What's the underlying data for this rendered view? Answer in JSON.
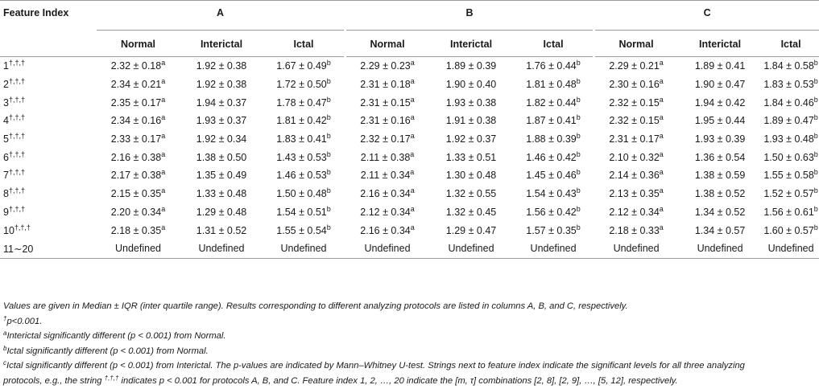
{
  "table": {
    "header_feature_index": "Feature Index",
    "groups": [
      "A",
      "B",
      "C"
    ],
    "subheaders": [
      "Normal",
      "Interictal",
      "Ictal"
    ],
    "rows": [
      {
        "idx": "1",
        "sig": "†,†,†",
        "cells": [
          {
            "v": "2.32 ± 0.18",
            "s": "a"
          },
          {
            "v": "1.92 ± 0.38",
            "s": ""
          },
          {
            "v": "1.67 ± 0.49",
            "s": "b"
          },
          {
            "v": "2.29 ± 0.23",
            "s": "a"
          },
          {
            "v": "1.89 ± 0.39",
            "s": ""
          },
          {
            "v": "1.76 ± 0.44",
            "s": "b"
          },
          {
            "v": "2.29 ± 0.21",
            "s": "a"
          },
          {
            "v": "1.89 ± 0.41",
            "s": ""
          },
          {
            "v": "1.84 ± 0.58",
            "s": "b"
          }
        ]
      },
      {
        "idx": "2",
        "sig": "†,†,†",
        "cells": [
          {
            "v": "2.34 ± 0.21",
            "s": "a"
          },
          {
            "v": "1.92 ± 0.38",
            "s": ""
          },
          {
            "v": "1.72 ± 0.50",
            "s": "b"
          },
          {
            "v": "2.31 ± 0.18",
            "s": "a"
          },
          {
            "v": "1.90 ± 0.40",
            "s": ""
          },
          {
            "v": "1.81 ± 0.48",
            "s": "b"
          },
          {
            "v": "2.30 ± 0.16",
            "s": "a"
          },
          {
            "v": "1.90 ± 0.47",
            "s": ""
          },
          {
            "v": "1.83 ± 0.53",
            "s": "b"
          }
        ]
      },
      {
        "idx": "3",
        "sig": "†,†,†",
        "cells": [
          {
            "v": "2.35 ± 0.17",
            "s": "a"
          },
          {
            "v": "1.94 ± 0.37",
            "s": ""
          },
          {
            "v": "1.78 ± 0.47",
            "s": "b"
          },
          {
            "v": "2.31 ± 0.15",
            "s": "a"
          },
          {
            "v": "1.93 ± 0.38",
            "s": ""
          },
          {
            "v": "1.82 ± 0.44",
            "s": "b"
          },
          {
            "v": "2.32 ± 0.15",
            "s": "a"
          },
          {
            "v": "1.94 ± 0.42",
            "s": ""
          },
          {
            "v": "1.84 ± 0.46",
            "s": "b"
          }
        ]
      },
      {
        "idx": "4",
        "sig": "†,†,†",
        "cells": [
          {
            "v": "2.34 ± 0.16",
            "s": "a"
          },
          {
            "v": "1.93 ± 0.37",
            "s": ""
          },
          {
            "v": "1.81 ± 0.42",
            "s": "b"
          },
          {
            "v": "2.31 ± 0.16",
            "s": "a"
          },
          {
            "v": "1.91 ± 0.38",
            "s": ""
          },
          {
            "v": "1.87 ± 0.41",
            "s": "b"
          },
          {
            "v": "2.32 ± 0.15",
            "s": "a"
          },
          {
            "v": "1.95 ± 0.44",
            "s": ""
          },
          {
            "v": "1.89 ± 0.47",
            "s": "b"
          }
        ]
      },
      {
        "idx": "5",
        "sig": "†,†,†",
        "cells": [
          {
            "v": "2.33 ± 0.17",
            "s": "a"
          },
          {
            "v": "1.92 ± 0.34",
            "s": ""
          },
          {
            "v": "1.83 ± 0.41",
            "s": "b"
          },
          {
            "v": "2.32 ± 0.17",
            "s": "a"
          },
          {
            "v": "1.92 ± 0.37",
            "s": ""
          },
          {
            "v": "1.88 ± 0.39",
            "s": "b"
          },
          {
            "v": "2.31 ± 0.17",
            "s": "a"
          },
          {
            "v": "1.93 ± 0.39",
            "s": ""
          },
          {
            "v": "1.93 ± 0.48",
            "s": "b"
          }
        ]
      },
      {
        "idx": "6",
        "sig": "†,†,†",
        "cells": [
          {
            "v": "2.16 ± 0.38",
            "s": "a"
          },
          {
            "v": "1.38 ± 0.50",
            "s": ""
          },
          {
            "v": "1.43 ± 0.53",
            "s": "b"
          },
          {
            "v": "2.11 ± 0.38",
            "s": "a"
          },
          {
            "v": "1.33 ± 0.51",
            "s": ""
          },
          {
            "v": "1.46 ± 0.42",
            "s": "b"
          },
          {
            "v": "2.10 ± 0.32",
            "s": "a"
          },
          {
            "v": "1.36 ± 0.54",
            "s": ""
          },
          {
            "v": "1.50 ± 0.63",
            "s": "b"
          }
        ]
      },
      {
        "idx": "7",
        "sig": "†,†,†",
        "cells": [
          {
            "v": "2.17 ± 0.38",
            "s": "a"
          },
          {
            "v": "1.35 ± 0.49",
            "s": ""
          },
          {
            "v": "1.46 ± 0.53",
            "s": "b"
          },
          {
            "v": "2.11 ± 0.34",
            "s": "a"
          },
          {
            "v": "1.30 ± 0.48",
            "s": ""
          },
          {
            "v": "1.45 ± 0.46",
            "s": "b"
          },
          {
            "v": "2.14 ± 0.36",
            "s": "a"
          },
          {
            "v": "1.38 ± 0.59",
            "s": ""
          },
          {
            "v": "1.55 ± 0.58",
            "s": "b"
          }
        ]
      },
      {
        "idx": "8",
        "sig": "†,†,†",
        "cells": [
          {
            "v": "2.15 ± 0.35",
            "s": "a"
          },
          {
            "v": "1.33 ± 0.48",
            "s": ""
          },
          {
            "v": "1.50 ± 0.48",
            "s": "b"
          },
          {
            "v": "2.16 ± 0.34",
            "s": "a"
          },
          {
            "v": "1.32 ± 0.55",
            "s": ""
          },
          {
            "v": "1.54 ± 0.43",
            "s": "b"
          },
          {
            "v": "2.13 ± 0.35",
            "s": "a"
          },
          {
            "v": "1.38 ± 0.52",
            "s": ""
          },
          {
            "v": "1.52 ± 0.57",
            "s": "b"
          }
        ]
      },
      {
        "idx": "9",
        "sig": "†,†,†",
        "cells": [
          {
            "v": "2.20 ± 0.34",
            "s": "a"
          },
          {
            "v": "1.29 ± 0.48",
            "s": ""
          },
          {
            "v": "1.54 ± 0.51",
            "s": "b"
          },
          {
            "v": "2.12 ± 0.34",
            "s": "a"
          },
          {
            "v": "1.32 ± 0.45",
            "s": ""
          },
          {
            "v": "1.56 ± 0.42",
            "s": "b"
          },
          {
            "v": "2.12 ± 0.34",
            "s": "a"
          },
          {
            "v": "1.34 ± 0.52",
            "s": ""
          },
          {
            "v": "1.56 ± 0.61",
            "s": "b"
          }
        ]
      },
      {
        "idx": "10",
        "sig": "†,†,†",
        "cells": [
          {
            "v": "2.18 ± 0.35",
            "s": "a"
          },
          {
            "v": "1.31 ± 0.52",
            "s": ""
          },
          {
            "v": "1.55 ± 0.54",
            "s": "b"
          },
          {
            "v": "2.16 ± 0.34",
            "s": "a"
          },
          {
            "v": "1.29 ± 0.47",
            "s": ""
          },
          {
            "v": "1.57 ± 0.35",
            "s": "b"
          },
          {
            "v": "2.18 ± 0.33",
            "s": "a"
          },
          {
            "v": "1.34 ± 0.57",
            "s": ""
          },
          {
            "v": "1.60 ± 0.57",
            "s": "b"
          }
        ]
      },
      {
        "idx": "11∼20",
        "sig": "",
        "cells": [
          {
            "v": "Undefined",
            "s": ""
          },
          {
            "v": "Undefined",
            "s": ""
          },
          {
            "v": "Undefined",
            "s": ""
          },
          {
            "v": "Undefined",
            "s": ""
          },
          {
            "v": "Undefined",
            "s": ""
          },
          {
            "v": "Undefined",
            "s": ""
          },
          {
            "v": "Undefined",
            "s": ""
          },
          {
            "v": "Undefined",
            "s": ""
          },
          {
            "v": "Undefined",
            "s": ""
          }
        ]
      }
    ]
  },
  "notes": {
    "line1": "Values are given in Median ± IQR (inter quartile range). Results corresponding to different analyzing protocols are listed in columns A, B, and C, respectively.",
    "dagger_mark": "†",
    "dagger_text": "p<0.001.",
    "a_mark": "a",
    "a_text": "Interictal significantly different (p < 0.001) from Normal.",
    "b_mark": "b",
    "b_text": "Ictal significantly different (p < 0.001) from Normal.",
    "c_mark": "c",
    "c_text_part1": "Ictal significantly different (p < 0.001) from Interictal. The p-values are indicated by Mann–Whitney U-test. Strings next to feature index indicate the significant levels for all three analyzing",
    "c_text_part2_a": "protocols, e.g., the string ",
    "c_text_part2_string": "†,†,†",
    "c_text_part2_b": " indicates p < 0.001 for protocols A, B, and C. Feature index 1, 2, …, 20 indicate the [m, τ] combinations [2, 8], [2, 9], …, [5, 12], respectively."
  }
}
